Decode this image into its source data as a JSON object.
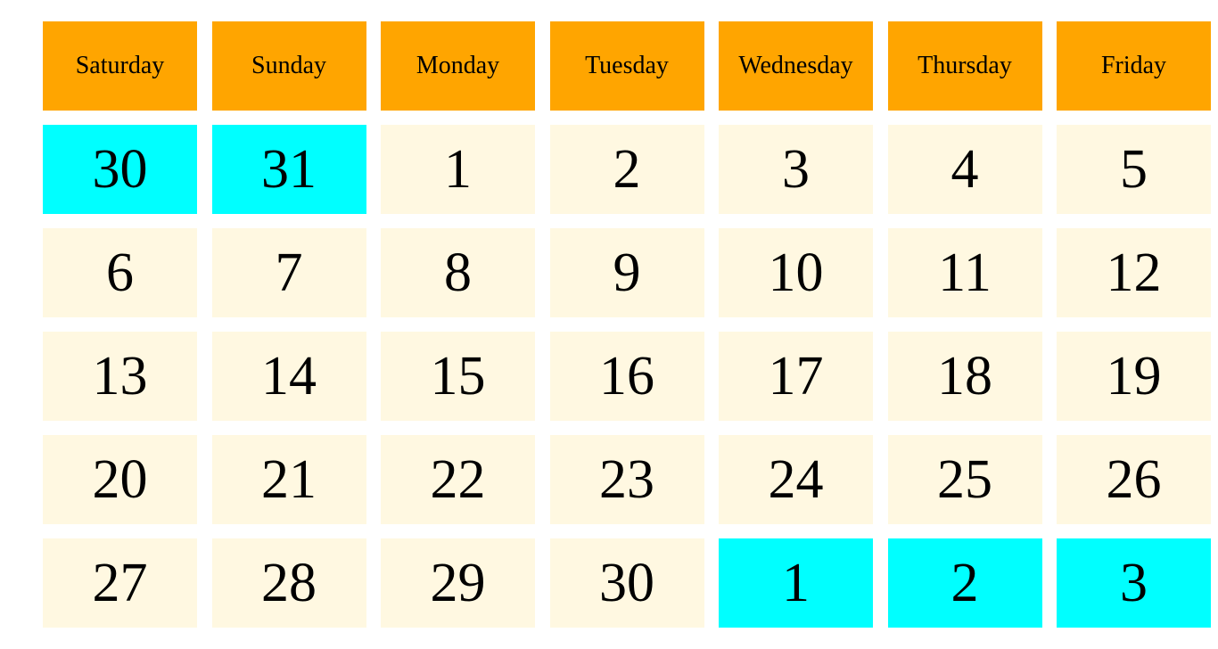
{
  "colors": {
    "header_bg": "#ffa500",
    "current_month_bg": "#fff8e1",
    "other_month_bg": "#00ffff",
    "text": "#000000"
  },
  "weekdays": [
    "Saturday",
    "Sunday",
    "Monday",
    "Tuesday",
    "Wednesday",
    "Thursday",
    "Friday"
  ],
  "weeks": [
    [
      {
        "day": "30",
        "other_month": true
      },
      {
        "day": "31",
        "other_month": true
      },
      {
        "day": "1",
        "other_month": false
      },
      {
        "day": "2",
        "other_month": false
      },
      {
        "day": "3",
        "other_month": false
      },
      {
        "day": "4",
        "other_month": false
      },
      {
        "day": "5",
        "other_month": false
      }
    ],
    [
      {
        "day": "6",
        "other_month": false
      },
      {
        "day": "7",
        "other_month": false
      },
      {
        "day": "8",
        "other_month": false
      },
      {
        "day": "9",
        "other_month": false
      },
      {
        "day": "10",
        "other_month": false
      },
      {
        "day": "11",
        "other_month": false
      },
      {
        "day": "12",
        "other_month": false
      }
    ],
    [
      {
        "day": "13",
        "other_month": false
      },
      {
        "day": "14",
        "other_month": false
      },
      {
        "day": "15",
        "other_month": false
      },
      {
        "day": "16",
        "other_month": false
      },
      {
        "day": "17",
        "other_month": false
      },
      {
        "day": "18",
        "other_month": false
      },
      {
        "day": "19",
        "other_month": false
      }
    ],
    [
      {
        "day": "20",
        "other_month": false
      },
      {
        "day": "21",
        "other_month": false
      },
      {
        "day": "22",
        "other_month": false
      },
      {
        "day": "23",
        "other_month": false
      },
      {
        "day": "24",
        "other_month": false
      },
      {
        "day": "25",
        "other_month": false
      },
      {
        "day": "26",
        "other_month": false
      }
    ],
    [
      {
        "day": "27",
        "other_month": false
      },
      {
        "day": "28",
        "other_month": false
      },
      {
        "day": "29",
        "other_month": false
      },
      {
        "day": "30",
        "other_month": false
      },
      {
        "day": "1",
        "other_month": true
      },
      {
        "day": "2",
        "other_month": true
      },
      {
        "day": "3",
        "other_month": true
      }
    ]
  ]
}
